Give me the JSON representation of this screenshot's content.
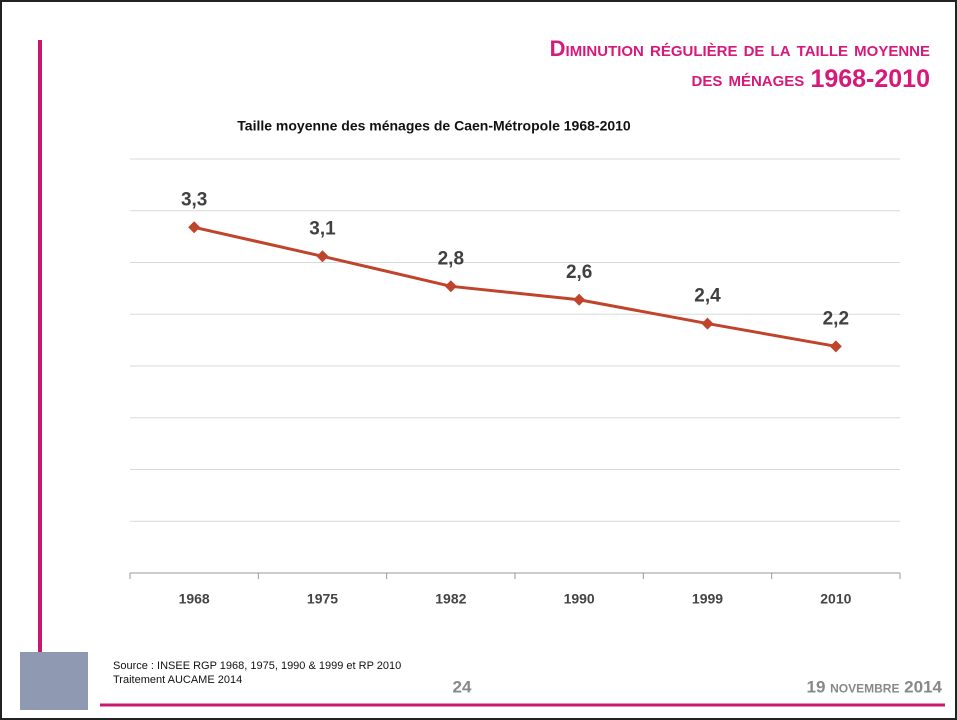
{
  "slide": {
    "title_line1": "Diminution régulière de la taille moyenne",
    "title_line2": "des ménages",
    "title_years": "1968-2010",
    "source": [
      "Source : INSEE  RGP 1968, 1975, 1990 & 1999 et RP 2010",
      "Traitement AUCAME 2014"
    ],
    "page": "24",
    "date": "19 novembre 2014"
  },
  "chart_data": {
    "type": "line",
    "title": "Taille moyenne des ménages de Caen-Métropole 1968-2010",
    "categories": [
      "1968",
      "1975",
      "1982",
      "1990",
      "1999",
      "2010"
    ],
    "series": [
      {
        "color": "#c0442c",
        "values": [
          3.34,
          3.06,
          2.77,
          2.64,
          2.41,
          2.19
        ],
        "value_labels": [
          "3,3",
          "3,1",
          "2,8",
          "2,6",
          "2,4",
          "2,2"
        ]
      }
    ],
    "ylim": [
      0,
      4
    ],
    "yticks": [
      0,
      0.5,
      1,
      1.5,
      2,
      2.5,
      3,
      3.5,
      4
    ],
    "grid": true
  }
}
